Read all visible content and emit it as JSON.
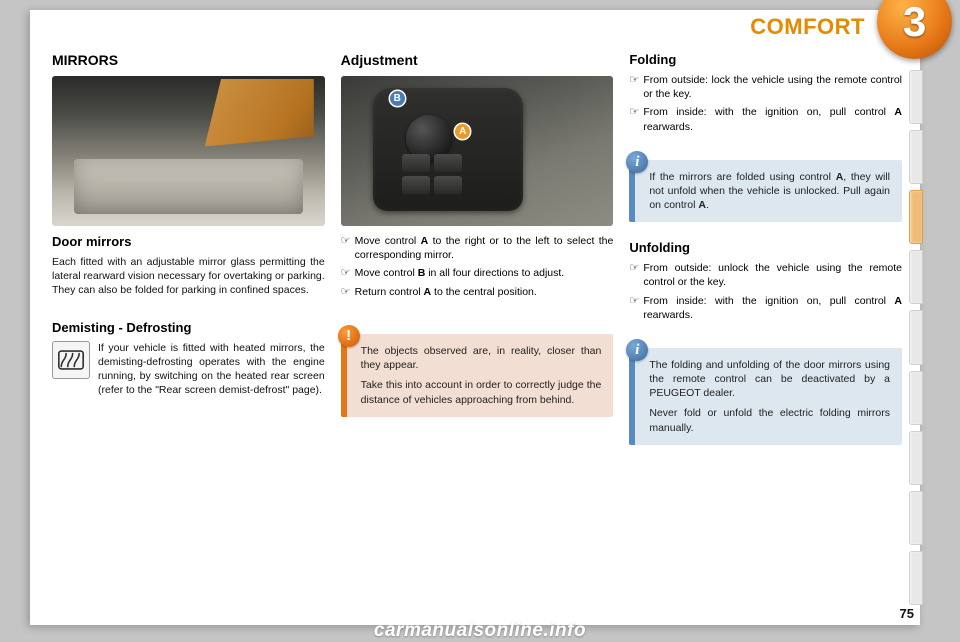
{
  "header": {
    "title": "COMFORT",
    "chapter_number": "3"
  },
  "page_number": "75",
  "footer_url": "carmanualsonline.info",
  "col1": {
    "title": "MIRRORS",
    "door_mirrors": {
      "heading": "Door mirrors",
      "text": "Each fitted with an adjustable mirror glass permitting the lateral rearward vision necessary for overtaking or parking. They can also be folded for parking in confined spaces."
    },
    "demist": {
      "heading": "Demisting - Defrosting",
      "text": "If your vehicle is fitted with heated mirrors, the demisting-defrosting operates with the engine running, by switching on the heated rear screen (refer to the \"Rear screen demist-defrost\" page)."
    }
  },
  "col2": {
    "title": "Adjustment",
    "labels": {
      "A": "A",
      "B": "B"
    },
    "items": [
      "Move control <b>A</b> to the right or to the left to select the corresponding mirror.",
      "Move control <b>B</b> in all four directions to adjust.",
      "Return control <b>A</b> to the central position."
    ],
    "warn": {
      "p1": "The objects observed are, in reality, closer than they appear.",
      "p2": "Take this into account in order to correctly judge the distance of vehicles approaching from behind."
    }
  },
  "col3": {
    "folding": {
      "heading": "Folding",
      "items": [
        "From outside: lock the vehicle using the remote control or the key.",
        "From inside: with the ignition on, pull control <b>A</b> rearwards."
      ]
    },
    "info1": "If the mirrors are folded using control <b>A</b>, they will not unfold when the vehicle is unlocked. Pull again on control <b>A</b>.",
    "unfolding": {
      "heading": "Unfolding",
      "items": [
        "From outside: unlock the vehicle using the remote control or the key.",
        "From inside: with the ignition on, pull control <b>A</b> rearwards."
      ]
    },
    "info2": {
      "p1": "The folding and unfolding of the door mirrors using the remote control can be deactivated by a PEUGEOT dealer.",
      "p2": "Never fold or unfold the electric folding mirrors manually."
    }
  },
  "marker": "☞",
  "icons": {
    "warn": "!",
    "info": "i"
  }
}
